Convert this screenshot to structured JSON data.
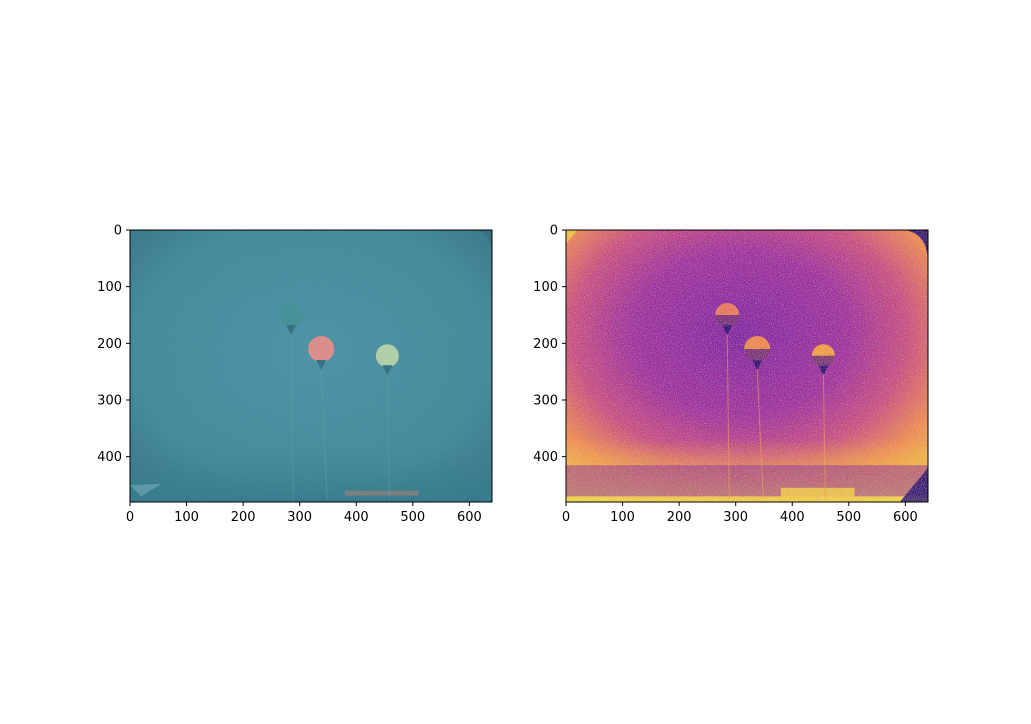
{
  "chart_data": [
    {
      "type": "image",
      "title": "",
      "xlabel": "",
      "ylabel": "",
      "xlim": [
        0,
        640
      ],
      "ylim": [
        480,
        0
      ],
      "xticks": [
        0,
        100,
        200,
        300,
        400,
        500,
        600
      ],
      "yticks": [
        0,
        100,
        200,
        300,
        400
      ],
      "colormap": "rgb",
      "content": [
        {
          "name": "teal buoy",
          "x": 285,
          "y": 150,
          "color": "#3f8c92"
        },
        {
          "name": "coral buoy",
          "x": 338,
          "y": 210,
          "color": "#e08a86"
        },
        {
          "name": "pale green buoy",
          "x": 455,
          "y": 222,
          "color": "#b4cfa6"
        }
      ],
      "background_color": "#3f8598"
    },
    {
      "type": "image",
      "title": "",
      "xlabel": "",
      "ylabel": "",
      "xlim": [
        0,
        640
      ],
      "ylim": [
        480,
        0
      ],
      "xticks": [
        0,
        100,
        200,
        300,
        400,
        500,
        600
      ],
      "yticks": [
        0,
        100,
        200,
        300,
        400
      ],
      "colormap": "plasma",
      "content": [
        {
          "name": "teal buoy",
          "x": 285,
          "y": 150,
          "color": "#e9785a"
        },
        {
          "name": "coral buoy",
          "x": 338,
          "y": 210,
          "color": "#f0884a"
        },
        {
          "name": "pale green buoy",
          "x": 455,
          "y": 222,
          "color": "#f2a040"
        }
      ],
      "background_color": "#6a12a0"
    }
  ]
}
